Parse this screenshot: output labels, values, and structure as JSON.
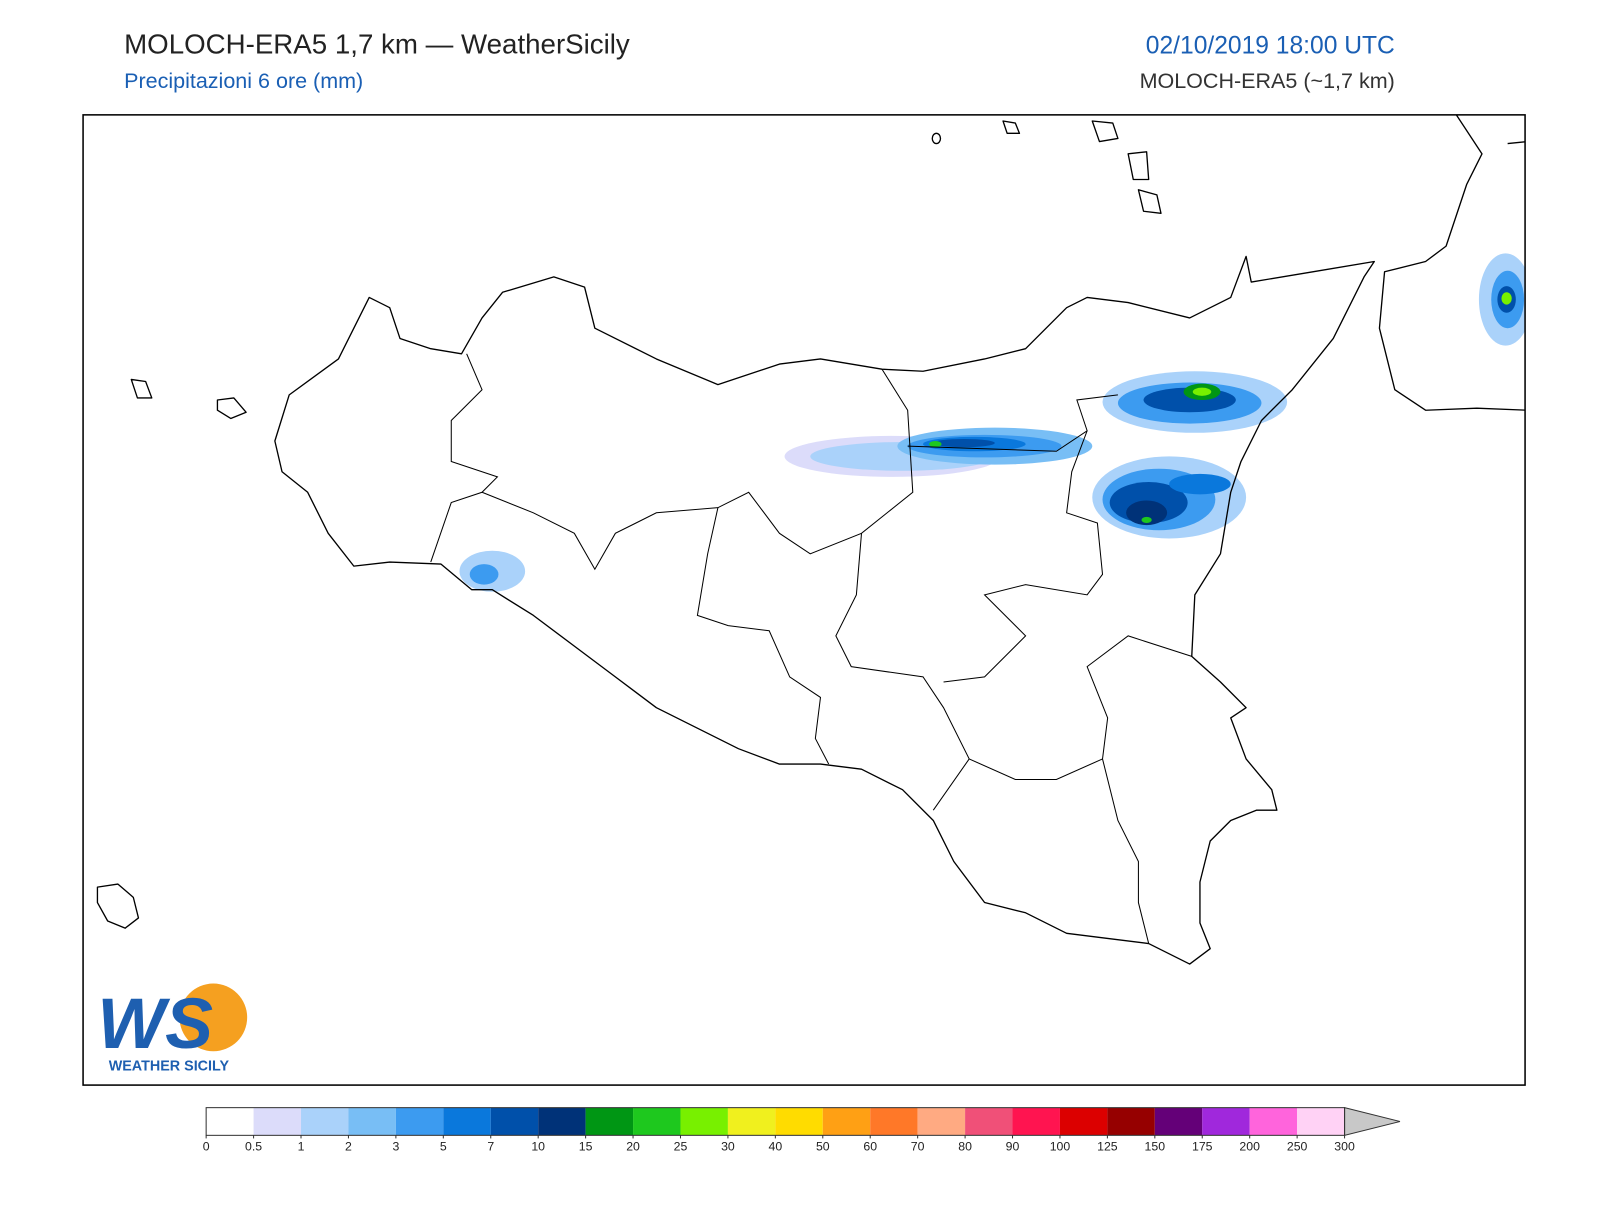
{
  "header": {
    "title": "MOLOCH-ERA5 1,7 km — WeatherSicily",
    "subtitle": "Precipitazioni 6 ore (mm)",
    "date": "02/10/2019 18:00 UTC",
    "model": "MOLOCH-ERA5 (~1,7 km)"
  },
  "logo": {
    "mark": "WS",
    "name": "WEATHER SICILY"
  },
  "colorbar": {
    "ticks": [
      0,
      0.5,
      1,
      2,
      3,
      5,
      7,
      10,
      15,
      20,
      25,
      30,
      40,
      50,
      60,
      70,
      80,
      90,
      100,
      125,
      150,
      175,
      200,
      250,
      300
    ],
    "colors": [
      "#ffffff",
      "#dcdcfa",
      "#aad2fa",
      "#78bef5",
      "#3c9bf0",
      "#0a78dc",
      "#0050aa",
      "#003278",
      "#009614",
      "#1ec81e",
      "#78f000",
      "#f0f01e",
      "#ffdc00",
      "#ffa014",
      "#ff7828",
      "#ffaa82",
      "#f05078",
      "#ff1450",
      "#dc0000",
      "#960000",
      "#640078",
      "#a028dc",
      "#ff64dc",
      "#ffd2f5"
    ],
    "over_color": "#c8c8c8"
  }
}
